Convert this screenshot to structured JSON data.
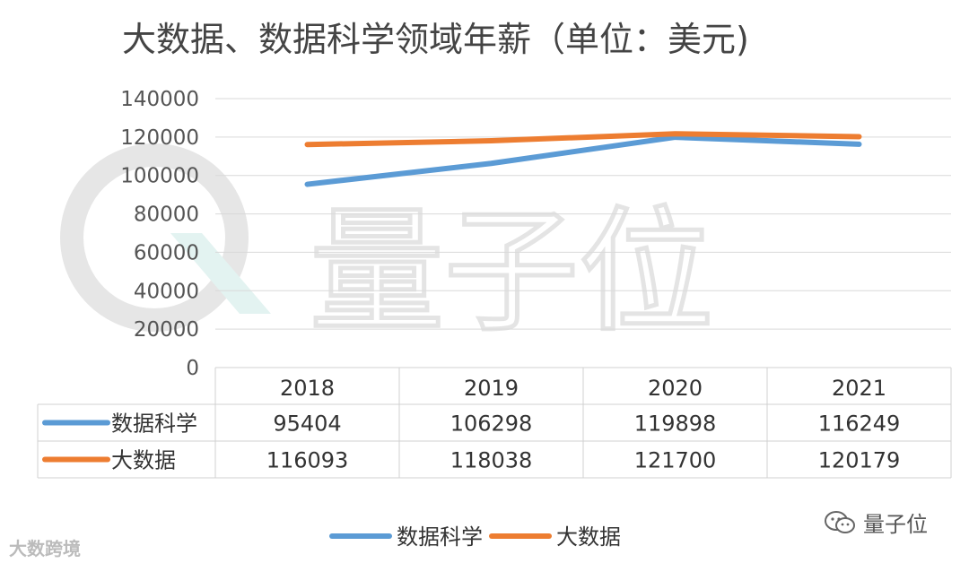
{
  "chart_data": {
    "type": "line",
    "title": "大数据、数据科学领域年薪（单位：美元)",
    "categories": [
      "2018",
      "2019",
      "2020",
      "2021"
    ],
    "series": [
      {
        "name": "数据科学",
        "values": [
          95404,
          106298,
          119898,
          116249
        ],
        "color": "#5b9bd5"
      },
      {
        "name": "大数据",
        "values": [
          116093,
          118038,
          121700,
          120179
        ],
        "color": "#ed7d31"
      }
    ],
    "ylim": [
      0,
      140000
    ],
    "yticks": [
      "140000",
      "120000",
      "100000",
      "80000",
      "60000",
      "40000",
      "20000",
      "0"
    ],
    "grid": true,
    "legend": "bottom",
    "data_table": true
  },
  "watermark": {
    "text": "量子位"
  },
  "footer": {
    "left_logo": "大数跨境",
    "right_logo": "量子位",
    "wechat_icon": "wechat-icon"
  }
}
